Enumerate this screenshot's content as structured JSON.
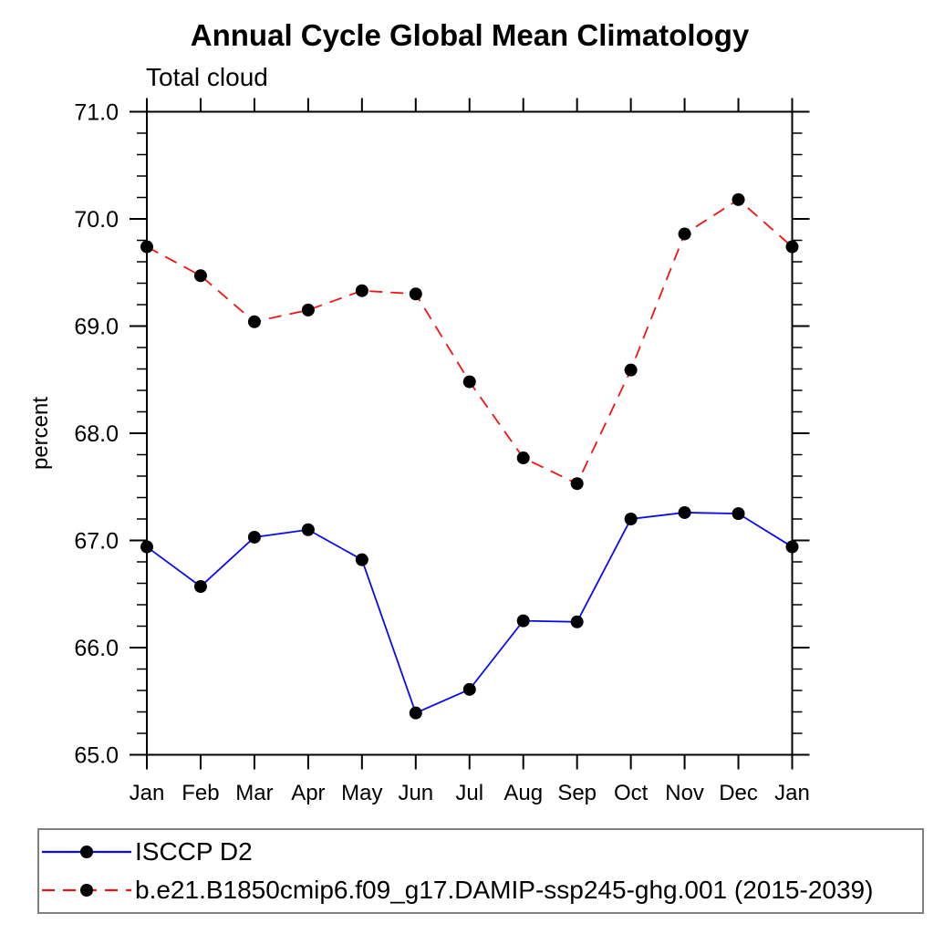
{
  "page": {
    "background": "#ffffff"
  },
  "chart_data": {
    "type": "line",
    "title": "Annual Cycle Global Mean Climatology",
    "subtitle": "Total cloud",
    "ylabel": "percent",
    "xlabel": "",
    "categories": [
      "Jan",
      "Feb",
      "Mar",
      "Apr",
      "May",
      "Jun",
      "Jul",
      "Aug",
      "Sep",
      "Oct",
      "Nov",
      "Dec",
      "Jan"
    ],
    "ylim": [
      65.0,
      71.0
    ],
    "ytick_major": 1.0,
    "ytick_minor": 0.2,
    "ytick_labels": [
      "65.0",
      "66.0",
      "67.0",
      "68.0",
      "69.0",
      "70.0",
      "71.0"
    ],
    "grid": false,
    "axis_color": "#000000",
    "marker": "filled-circle",
    "marker_color": "#000000",
    "legend_position": "bottom-left-box",
    "legend_border_color": "#7f7f7f",
    "series": [
      {
        "name": "ISCCP D2",
        "color": "#0a0af0",
        "style": "solid",
        "values": [
          66.94,
          66.57,
          67.03,
          67.1,
          66.82,
          65.39,
          65.61,
          66.25,
          66.24,
          67.2,
          67.26,
          67.25,
          66.94
        ]
      },
      {
        "name": "b.e21.B1850cmip6.f09_g17.DAMIP-ssp245-ghg.001 (2015-2039)",
        "color": "#f21414",
        "style": "dashed",
        "values": [
          69.74,
          69.47,
          69.04,
          69.15,
          69.33,
          69.3,
          68.48,
          67.77,
          67.53,
          68.59,
          69.86,
          70.18,
          69.74
        ]
      }
    ]
  }
}
